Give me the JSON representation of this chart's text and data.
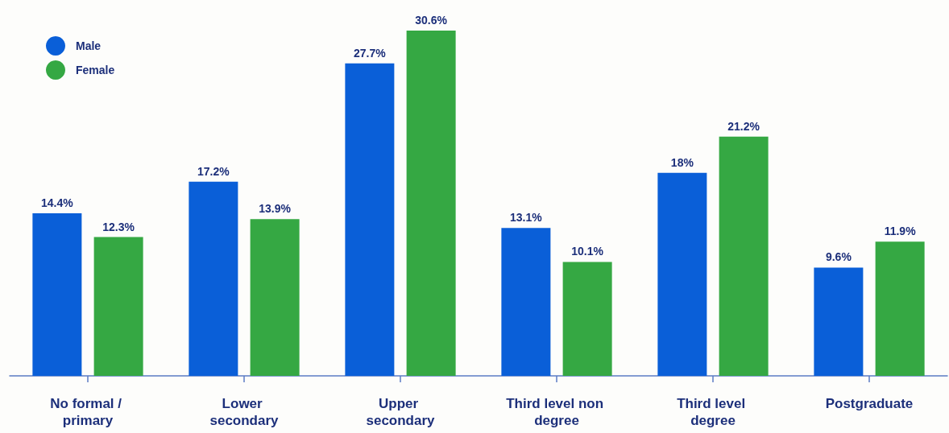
{
  "chart_data": {
    "type": "bar",
    "categories": [
      "No formal / primary",
      "Lower secondary",
      "Upper secondary",
      "Third level non degree",
      "Third level degree",
      "Postgraduate"
    ],
    "series": [
      {
        "name": "Male",
        "color": "#0a5fd8",
        "values": [
          14.4,
          17.2,
          27.7,
          13.1,
          18,
          9.6
        ],
        "value_labels": [
          "14.4%",
          "17.2%",
          "27.7%",
          "13.1%",
          "18%",
          "9.6%"
        ]
      },
      {
        "name": "Female",
        "color": "#35a843",
        "values": [
          12.3,
          13.9,
          30.6,
          10.1,
          21.2,
          11.9
        ],
        "value_labels": [
          "12.3%",
          "13.9%",
          "30.6%",
          "10.1%",
          "21.2%",
          "11.9%"
        ]
      }
    ],
    "legend": "top left",
    "tick_labels": "x"
  }
}
